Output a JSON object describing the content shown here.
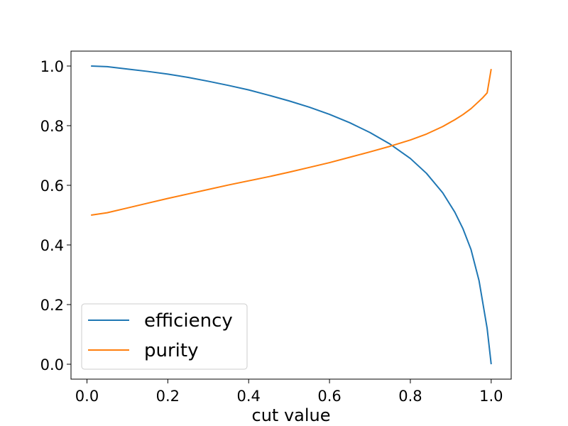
{
  "chart_data": {
    "type": "line",
    "title": "",
    "xlabel": "cut value",
    "ylabel": "",
    "xlim": [
      -0.0395,
      1.0495
    ],
    "ylim": [
      -0.05,
      1.05
    ],
    "xticks": [
      0.0,
      0.2,
      0.4,
      0.6,
      0.8,
      1.0
    ],
    "xtick_labels": [
      "0.0",
      "0.2",
      "0.4",
      "0.6",
      "0.8",
      "1.0"
    ],
    "yticks": [
      0.0,
      0.2,
      0.4,
      0.6,
      0.8,
      1.0
    ],
    "ytick_labels": [
      "0.0",
      "0.2",
      "0.4",
      "0.6",
      "0.8",
      "1.0"
    ],
    "grid": false,
    "legend_position": "lower-left",
    "x": [
      0.01,
      0.05,
      0.1,
      0.15,
      0.2,
      0.25,
      0.3,
      0.35,
      0.4,
      0.45,
      0.5,
      0.55,
      0.6,
      0.65,
      0.7,
      0.75,
      0.8,
      0.84,
      0.88,
      0.91,
      0.93,
      0.95,
      0.97,
      0.98,
      0.99,
      1.0
    ],
    "series": [
      {
        "name": "efficiency",
        "color": "#1f77b4",
        "values": [
          1.0,
          0.998,
          0.99,
          0.982,
          0.973,
          0.962,
          0.949,
          0.935,
          0.92,
          0.902,
          0.883,
          0.862,
          0.838,
          0.81,
          0.777,
          0.738,
          0.69,
          0.64,
          0.575,
          0.51,
          0.455,
          0.385,
          0.28,
          0.2,
          0.12,
          0.0
        ]
      },
      {
        "name": "purity",
        "color": "#ff7f0e",
        "values": [
          0.5,
          0.508,
          0.524,
          0.54,
          0.556,
          0.571,
          0.586,
          0.601,
          0.615,
          0.629,
          0.644,
          0.66,
          0.676,
          0.694,
          0.712,
          0.731,
          0.752,
          0.772,
          0.797,
          0.82,
          0.837,
          0.857,
          0.882,
          0.895,
          0.91,
          0.99
        ]
      }
    ]
  }
}
